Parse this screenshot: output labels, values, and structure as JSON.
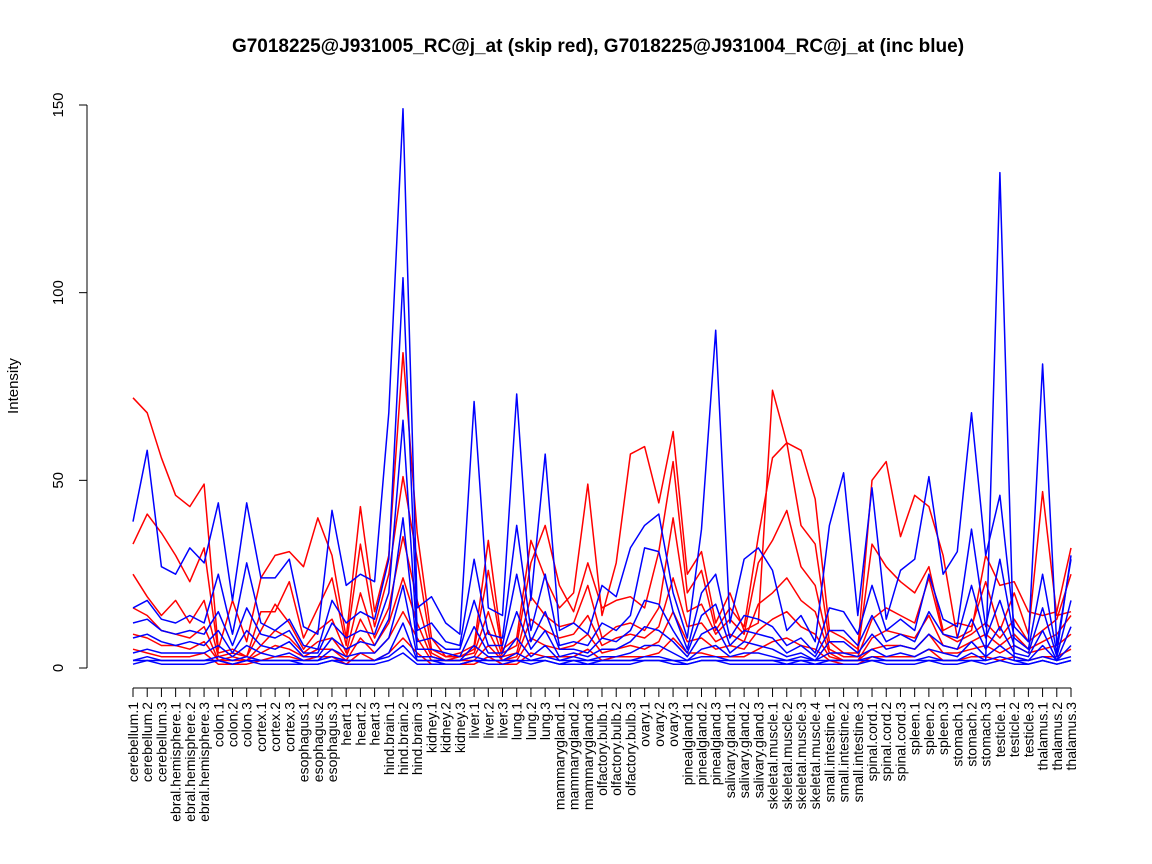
{
  "chart_data": {
    "type": "line",
    "title": "G7018225@J931005_RC@j_at (skip red), G7018225@J931004_RC@j_at (inc blue)",
    "xlabel": "",
    "ylabel": "Intensity",
    "ylim": [
      0,
      150
    ],
    "yticks": [
      0,
      50,
      100,
      150
    ],
    "grid": false,
    "categories": [
      "cerebellum.1",
      "cerebellum.2",
      "cerebellum.3",
      "cerebral.hemisphere.1",
      "cerebral.hemisphere.2",
      "cerebral.hemisphere.3",
      "colon.1",
      "colon.2",
      "colon.3",
      "cortex.1",
      "cortex.2",
      "cortex.3",
      "esophagus.1",
      "esophagus.2",
      "esophagus.3",
      "heart.1",
      "heart.2",
      "heart.3",
      "hind.brain.1",
      "hind.brain.2",
      "hind.brain.3",
      "kidney.1",
      "kidney.2",
      "kidney.3",
      "liver.1",
      "liver.2",
      "liver.3",
      "lung.1",
      "lung.2",
      "lung.3",
      "mammarygland.1",
      "mammarygland.2",
      "mammarygland.3",
      "olfactory.bulb.1",
      "olfactory.bulb.2",
      "olfactory.bulb.3",
      "ovary.1",
      "ovary.2",
      "ovary.3",
      "pinealgland.1",
      "pinealgland.2",
      "pinealgland.3",
      "salivary.gland.1",
      "salivary.gland.2",
      "salivary.gland.3",
      "skeletal.muscle.1",
      "skeletal.muscle.2",
      "skeletal.muscle.3",
      "skeletal.muscle.4",
      "small.intestine.1",
      "small.intestine.2",
      "small.intestine.3",
      "spinal.cord.1",
      "spinal.cord.2",
      "spinal.cord.3",
      "spleen.1",
      "spleen.2",
      "spleen.3",
      "stomach.1",
      "stomach.2",
      "stomach.3",
      "testicle.1",
      "testicle.2",
      "testicle.3",
      "thalamus.1",
      "thalamus.2",
      "thalamus.3"
    ],
    "tick_labels": [
      "cerebellum.1",
      "cerebellum.2",
      "cerebellum.3",
      "ebral.hemisphere.1",
      "ebral.hemisphere.2",
      "ebral.hemisphere.3",
      "colon.1",
      "colon.2",
      "colon.3",
      "cortex.1",
      "cortex.2",
      "cortex.3",
      "esophagus.1",
      "esophagus.2",
      "esophagus.3",
      "heart.1",
      "heart.2",
      "heart.3",
      "hind.brain.1",
      "hind.brain.2",
      "hind.brain.3",
      "kidney.1",
      "kidney.2",
      "kidney.3",
      "liver.1",
      "liver.2",
      "liver.3",
      "lung.1",
      "lung.2",
      "lung.3",
      "mammarygland.1",
      "mammarygland.2",
      "mammarygland.3",
      "olfactory.bulb.1",
      "olfactory.bulb.2",
      "olfactory.bulb.3",
      "ovary.1",
      "ovary.2",
      "ovary.3",
      "pinealgland.1",
      "pinealgland.2",
      "pinealgland.3",
      "salivary.gland.1",
      "salivary.gland.2",
      "salivary.gland.3",
      "skeletal.muscle.1",
      "skeletal.muscle.2",
      "skeletal.muscle.3",
      "skeletal.muscle.4",
      "small.intestine.1",
      "small.intestine.2",
      "small.intestine.3",
      "spinal.cord.1",
      "spinal.cord.2",
      "spinal.cord.3",
      "spleen.1",
      "spleen.2",
      "spleen.3",
      "stomach.1",
      "stomach.2",
      "stomach.3",
      "testicle.1",
      "testicle.2",
      "testicle.3",
      "thalamus.1",
      "thalamus.2",
      "thalamus.3"
    ],
    "colors": {
      "skip": "#ff0000",
      "inc": "#0000ff"
    },
    "series": [
      {
        "group": "skip",
        "color": "#ff0000",
        "values": [
          72,
          68,
          56,
          46,
          43,
          49,
          5,
          18,
          7,
          24,
          30,
          31,
          27,
          40,
          30,
          8,
          43,
          15,
          30,
          84,
          36,
          8,
          3,
          4,
          6,
          34,
          5,
          8,
          34,
          24,
          16,
          20,
          49,
          14,
          28,
          57,
          59,
          44,
          63,
          25,
          31,
          12,
          20,
          10,
          12,
          74,
          60,
          58,
          45,
          10,
          8,
          5,
          50,
          55,
          35,
          46,
          43,
          30,
          8,
          10,
          30,
          22,
          23,
          15,
          14,
          15,
          32
        ]
      },
      {
        "group": "skip",
        "color": "#ff0000",
        "values": [
          33,
          41,
          36,
          30,
          23,
          32,
          4,
          5,
          3,
          15,
          15,
          23,
          8,
          16,
          24,
          6,
          33,
          11,
          25,
          51,
          29,
          5,
          3,
          3,
          5,
          26,
          4,
          6,
          28,
          38,
          22,
          15,
          28,
          16,
          18,
          19,
          16,
          31,
          55,
          20,
          26,
          10,
          16,
          11,
          35,
          56,
          60,
          38,
          33,
          7,
          4,
          4,
          33,
          27,
          23,
          20,
          27,
          10,
          12,
          11,
          23,
          10,
          20,
          9,
          47,
          14,
          15
        ]
      },
      {
        "group": "skip",
        "color": "#ff0000",
        "values": [
          25,
          19,
          14,
          18,
          12,
          18,
          3,
          4,
          3,
          10,
          17,
          12,
          5,
          10,
          13,
          4,
          20,
          8,
          16,
          35,
          18,
          4,
          2,
          3,
          4,
          15,
          3,
          4,
          19,
          14,
          11,
          12,
          22,
          8,
          11,
          12,
          10,
          16,
          40,
          15,
          17,
          9,
          13,
          9,
          28,
          34,
          42,
          27,
          22,
          5,
          3,
          3,
          13,
          16,
          14,
          12,
          24,
          9,
          7,
          9,
          12,
          8,
          13,
          7,
          10,
          13,
          25
        ]
      },
      {
        "group": "skip",
        "color": "#ff0000",
        "values": [
          16,
          14,
          10,
          9,
          8,
          11,
          2,
          3,
          2,
          6,
          10,
          8,
          4,
          7,
          8,
          3,
          13,
          6,
          12,
          24,
          12,
          3,
          2,
          2,
          3,
          10,
          2,
          3,
          13,
          10,
          8,
          9,
          14,
          6,
          8,
          9,
          8,
          11,
          24,
          11,
          12,
          7,
          9,
          7,
          17,
          20,
          24,
          18,
          15,
          4,
          2,
          2,
          8,
          10,
          9,
          8,
          14,
          6,
          5,
          7,
          9,
          6,
          9,
          5,
          7,
          9,
          14
        ]
      },
      {
        "group": "skip",
        "color": "#ff0000",
        "values": [
          9,
          8,
          6,
          6,
          5,
          7,
          2,
          2,
          2,
          4,
          6,
          5,
          3,
          5,
          5,
          2,
          8,
          4,
          8,
          15,
          8,
          2,
          2,
          2,
          2,
          6,
          2,
          2,
          8,
          6,
          5,
          6,
          9,
          4,
          5,
          6,
          5,
          7,
          15,
          7,
          8,
          5,
          6,
          5,
          10,
          13,
          15,
          11,
          9,
          3,
          2,
          2,
          5,
          6,
          6,
          5,
          9,
          4,
          4,
          5,
          6,
          4,
          6,
          4,
          5,
          6,
          9
        ]
      },
      {
        "group": "skip",
        "color": "#ff0000",
        "values": [
          5,
          4,
          3,
          3,
          3,
          4,
          1,
          1,
          1,
          2,
          3,
          3,
          2,
          3,
          3,
          1,
          4,
          2,
          4,
          8,
          4,
          1,
          1,
          1,
          1,
          3,
          1,
          1,
          4,
          3,
          3,
          3,
          5,
          2,
          3,
          3,
          3,
          4,
          8,
          4,
          4,
          3,
          3,
          3,
          5,
          7,
          8,
          6,
          5,
          2,
          1,
          1,
          3,
          3,
          3,
          3,
          5,
          2,
          2,
          3,
          3,
          2,
          3,
          2,
          3,
          3,
          5
        ]
      },
      {
        "group": "inc",
        "color": "#0000ff",
        "values": [
          39,
          58,
          27,
          25,
          32,
          28,
          44,
          18,
          44,
          24,
          24,
          29,
          11,
          9,
          42,
          22,
          25,
          23,
          68,
          149,
          16,
          19,
          12,
          9,
          71,
          16,
          14,
          73,
          18,
          57,
          10,
          12,
          9,
          22,
          19,
          32,
          38,
          41,
          20,
          8,
          37,
          90,
          12,
          29,
          32,
          26,
          10,
          14,
          7,
          38,
          52,
          14,
          48,
          13,
          26,
          29,
          51,
          25,
          31,
          68,
          30,
          46,
          11,
          7,
          81,
          6,
          29
        ]
      },
      {
        "group": "inc",
        "color": "#0000ff",
        "values": [
          16,
          18,
          13,
          12,
          14,
          12,
          25,
          9,
          28,
          12,
          10,
          13,
          6,
          5,
          18,
          12,
          15,
          13,
          29,
          104,
          10,
          12,
          7,
          6,
          29,
          9,
          8,
          38,
          10,
          25,
          6,
          7,
          6,
          12,
          10,
          14,
          32,
          31,
          15,
          5,
          20,
          25,
          8,
          14,
          13,
          11,
          6,
          8,
          4,
          16,
          15,
          9,
          22,
          10,
          13,
          10,
          25,
          13,
          11,
          37,
          11,
          29,
          8,
          5,
          25,
          4,
          30
        ]
      },
      {
        "group": "inc",
        "color": "#0000ff",
        "values": [
          12,
          13,
          10,
          9,
          10,
          9,
          15,
          6,
          16,
          9,
          8,
          10,
          4,
          4,
          12,
          8,
          10,
          9,
          20,
          66,
          7,
          8,
          5,
          5,
          18,
          6,
          6,
          25,
          7,
          15,
          5,
          5,
          4,
          8,
          7,
          10,
          18,
          17,
          10,
          4,
          14,
          17,
          6,
          10,
          9,
          8,
          4,
          6,
          3,
          10,
          10,
          6,
          14,
          7,
          9,
          7,
          15,
          9,
          8,
          22,
          8,
          18,
          6,
          4,
          16,
          3,
          18
        ]
      },
      {
        "group": "inc",
        "color": "#0000ff",
        "values": [
          8,
          9,
          7,
          6,
          7,
          6,
          10,
          4,
          10,
          6,
          5,
          7,
          3,
          3,
          8,
          5,
          7,
          6,
          13,
          40,
          5,
          5,
          4,
          3,
          11,
          4,
          4,
          15,
          5,
          10,
          3,
          4,
          3,
          5,
          5,
          7,
          11,
          10,
          7,
          3,
          9,
          11,
          4,
          7,
          6,
          5,
          3,
          4,
          2,
          7,
          7,
          4,
          9,
          5,
          6,
          5,
          9,
          6,
          5,
          13,
          5,
          11,
          4,
          3,
          10,
          2,
          11
        ]
      },
      {
        "group": "inc",
        "color": "#0000ff",
        "values": [
          4,
          5,
          4,
          4,
          4,
          4,
          6,
          3,
          6,
          4,
          3,
          4,
          2,
          2,
          5,
          3,
          4,
          4,
          8,
          22,
          3,
          3,
          2,
          2,
          6,
          3,
          3,
          8,
          3,
          6,
          2,
          3,
          2,
          3,
          3,
          4,
          6,
          6,
          4,
          2,
          5,
          6,
          3,
          4,
          4,
          3,
          2,
          3,
          2,
          4,
          4,
          3,
          5,
          3,
          4,
          3,
          5,
          4,
          3,
          7,
          3,
          6,
          3,
          2,
          6,
          2,
          6
        ]
      },
      {
        "group": "inc",
        "color": "#0000ff",
        "values": [
          2,
          3,
          2,
          2,
          2,
          2,
          3,
          2,
          3,
          2,
          2,
          2,
          2,
          2,
          3,
          2,
          2,
          2,
          4,
          12,
          2,
          2,
          2,
          2,
          3,
          2,
          2,
          4,
          2,
          3,
          2,
          2,
          2,
          2,
          2,
          2,
          3,
          3,
          2,
          2,
          3,
          3,
          2,
          2,
          2,
          2,
          2,
          2,
          2,
          2,
          2,
          2,
          3,
          2,
          2,
          2,
          3,
          2,
          2,
          4,
          2,
          3,
          2,
          2,
          3,
          2,
          3
        ]
      },
      {
        "group": "inc",
        "color": "#0000ff",
        "values": [
          2,
          2,
          2,
          2,
          2,
          2,
          2,
          1,
          2,
          2,
          2,
          2,
          1,
          1,
          2,
          2,
          2,
          2,
          3,
          6,
          2,
          2,
          1,
          1,
          2,
          2,
          2,
          2,
          2,
          2,
          1,
          2,
          1,
          2,
          2,
          2,
          2,
          2,
          2,
          1,
          2,
          2,
          2,
          2,
          2,
          2,
          1,
          2,
          1,
          2,
          2,
          2,
          2,
          2,
          2,
          2,
          2,
          2,
          2,
          2,
          2,
          132,
          2,
          1,
          2,
          1,
          2
        ]
      },
      {
        "group": "inc",
        "color": "#0000ff",
        "values": [
          1,
          2,
          1,
          1,
          1,
          1,
          2,
          1,
          2,
          1,
          1,
          1,
          1,
          1,
          2,
          1,
          1,
          1,
          2,
          4,
          1,
          1,
          1,
          1,
          2,
          1,
          1,
          2,
          1,
          2,
          1,
          1,
          1,
          1,
          1,
          1,
          2,
          2,
          1,
          1,
          2,
          2,
          1,
          1,
          1,
          1,
          1,
          1,
          1,
          1,
          1,
          1,
          2,
          1,
          1,
          1,
          2,
          1,
          1,
          2,
          1,
          2,
          1,
          1,
          2,
          1,
          2
        ]
      }
    ]
  }
}
